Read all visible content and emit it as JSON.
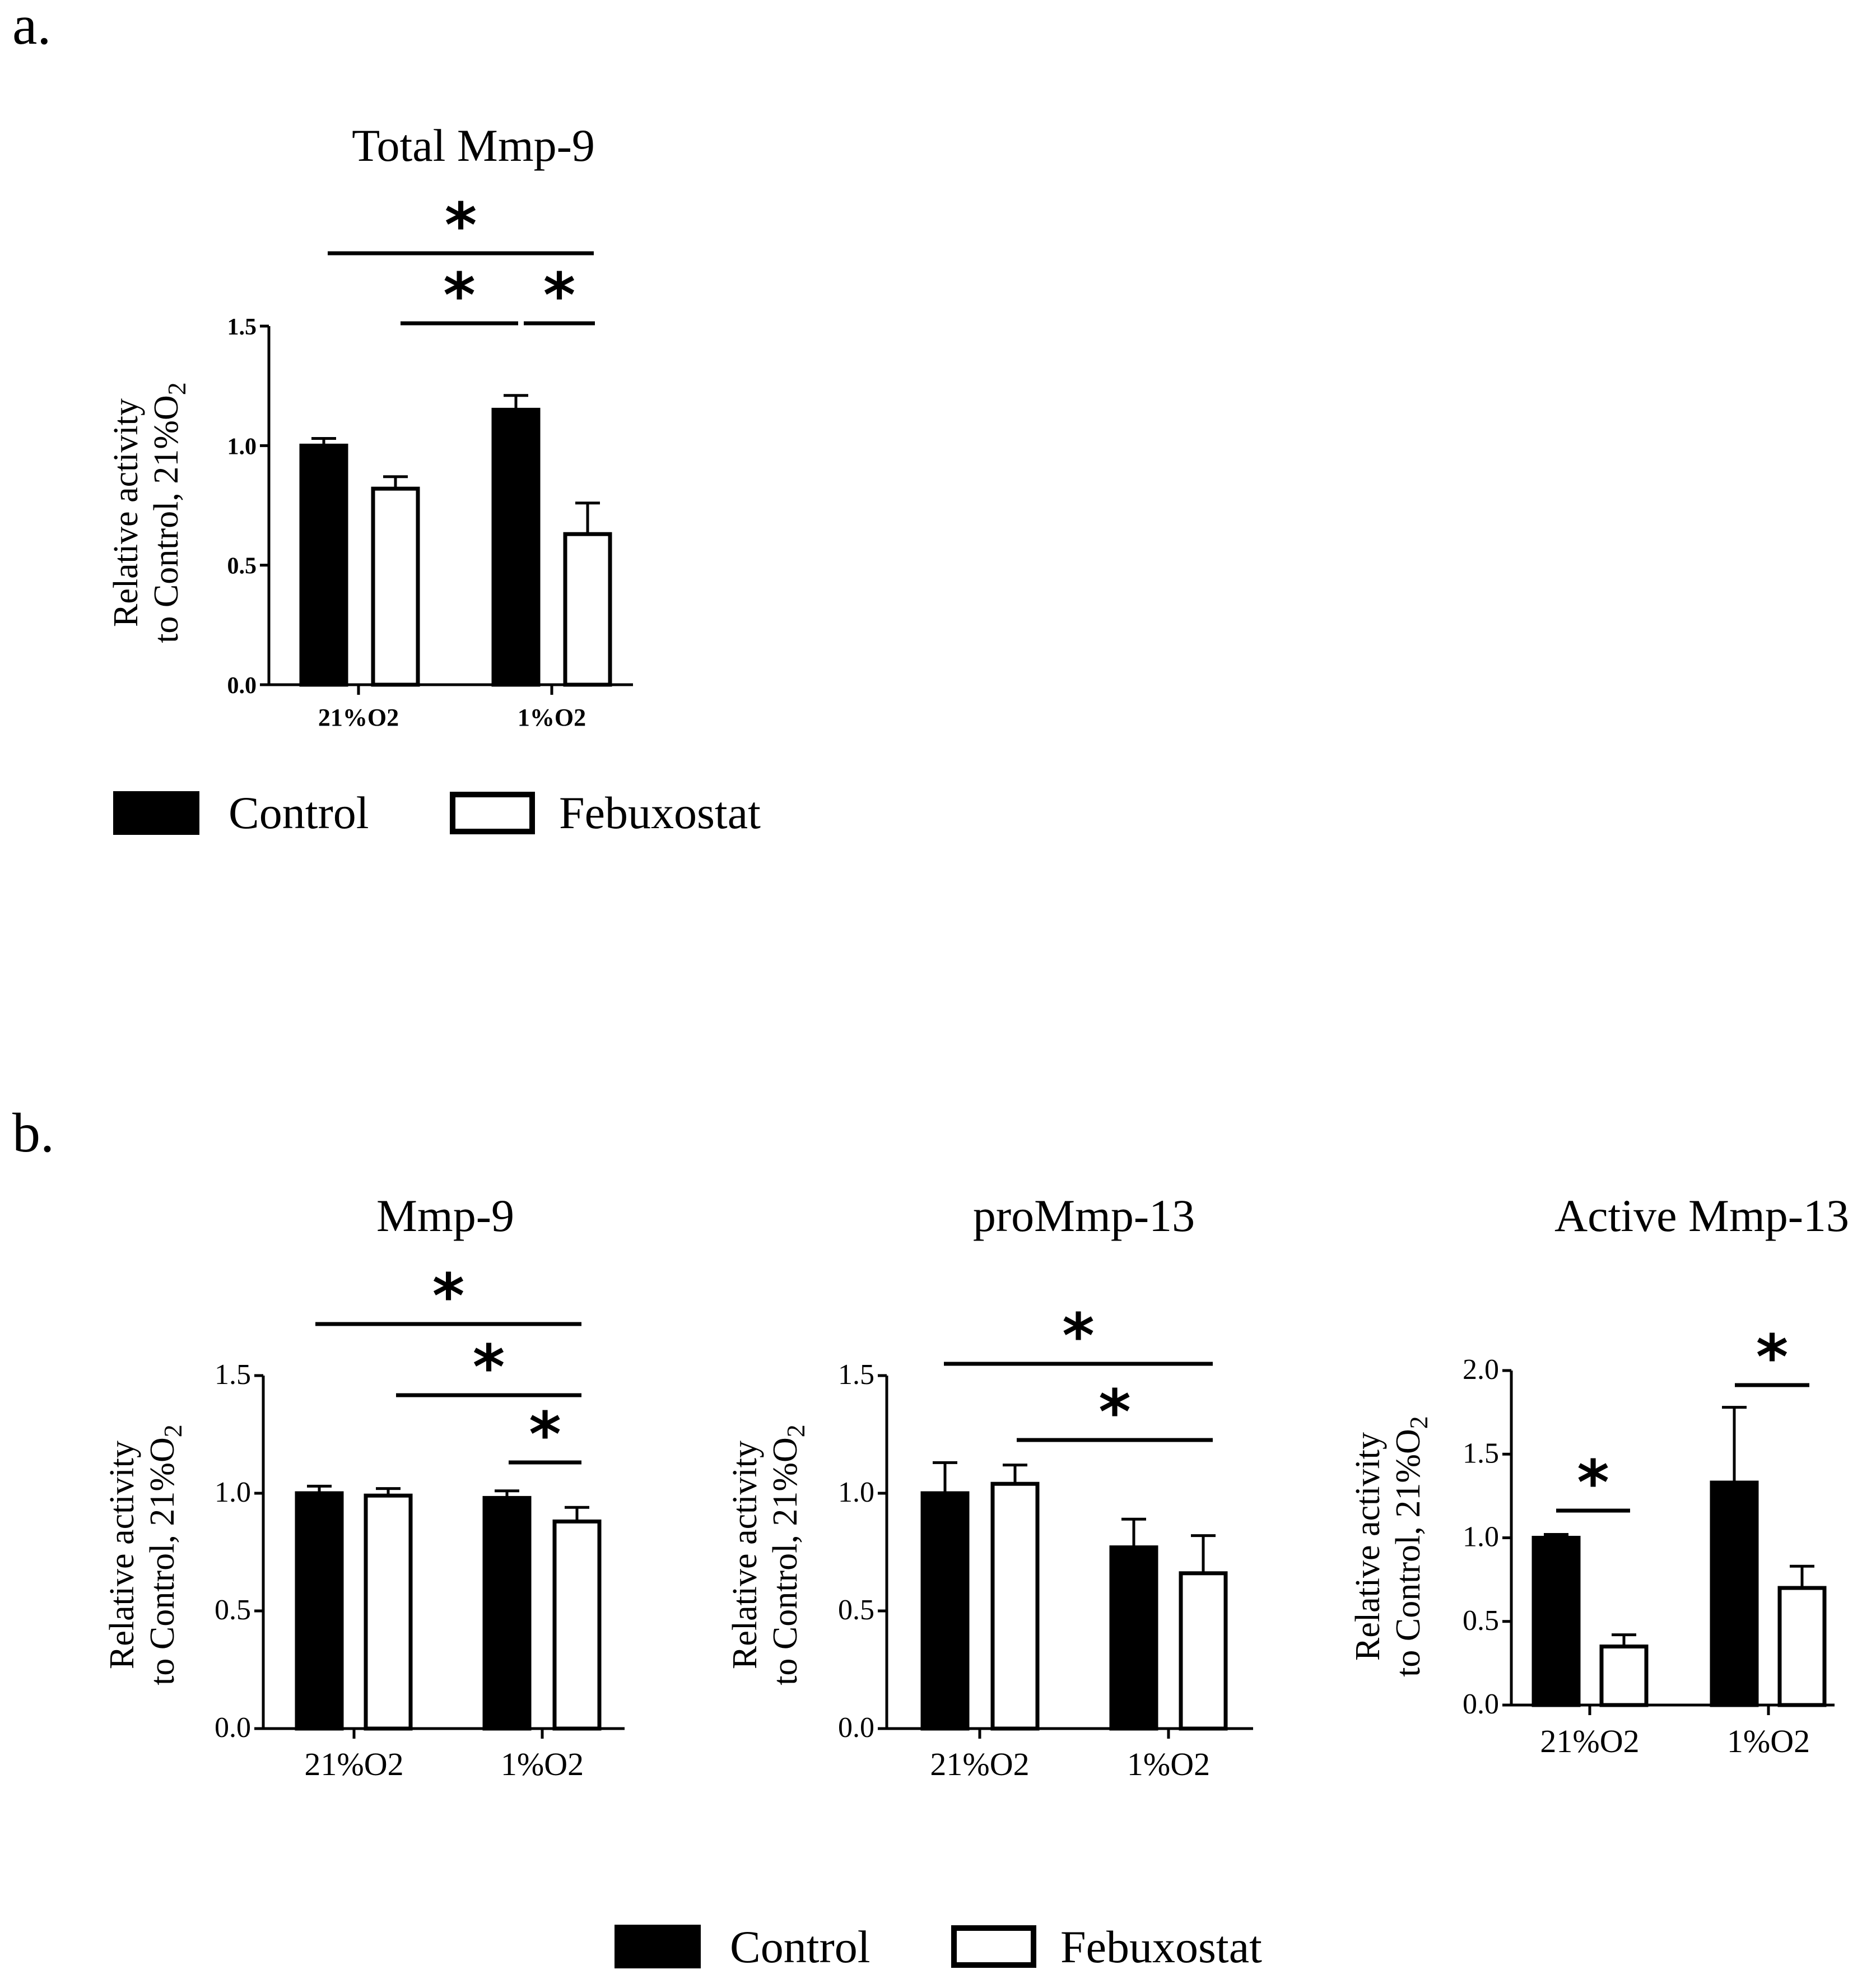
{
  "panel_labels": {
    "a": "a.",
    "b": "b."
  },
  "legend": {
    "control_label": "Control",
    "febuxostat_label": "Febuxostat"
  },
  "colors": {
    "control": "#000000",
    "febuxostat": "#ffffff",
    "stroke": "#000000"
  },
  "chart_data": [
    {
      "type": "bar",
      "panel": "a",
      "title": "Total Mmp-9",
      "ylabel": "Relative activity to Control, 21%O2",
      "ylim": [
        0,
        1.5
      ],
      "yticks": [
        "0.0",
        "0.5",
        "1.0",
        "1.5"
      ],
      "categories": [
        "21%O2",
        "1%O2"
      ],
      "series": [
        {
          "name": "Control",
          "values": [
            1.0,
            1.15
          ],
          "errors": [
            0.03,
            0.06
          ]
        },
        {
          "name": "Febuxostat",
          "values": [
            0.82,
            0.63
          ],
          "errors": [
            0.05,
            0.13
          ]
        }
      ],
      "significance": [
        {
          "from": [
            0,
            0
          ],
          "to": [
            1,
            1
          ],
          "label": "*"
        },
        {
          "from": [
            0,
            1
          ],
          "to": [
            1,
            0
          ],
          "label": "*"
        },
        {
          "from": [
            1,
            0
          ],
          "to": [
            1,
            1
          ],
          "label": "*"
        }
      ]
    },
    {
      "type": "bar",
      "panel": "b",
      "title": "Mmp-9",
      "ylabel": "Relative activity to Control, 21%O2",
      "ylim": [
        0,
        1.5
      ],
      "yticks": [
        "0.0",
        "0.5",
        "1.0",
        "1.5"
      ],
      "categories": [
        "21%O2",
        "1%O2"
      ],
      "series": [
        {
          "name": "Control",
          "values": [
            1.0,
            0.98
          ],
          "errors": [
            0.03,
            0.03
          ]
        },
        {
          "name": "Febuxostat",
          "values": [
            0.99,
            0.88
          ],
          "errors": [
            0.03,
            0.06
          ]
        }
      ],
      "significance": [
        {
          "from": [
            0,
            0
          ],
          "to": [
            1,
            1
          ],
          "label": "*"
        },
        {
          "from": [
            0,
            1
          ],
          "to": [
            1,
            1
          ],
          "label": "*"
        },
        {
          "from": [
            1,
            0
          ],
          "to": [
            1,
            1
          ],
          "label": "*"
        }
      ]
    },
    {
      "type": "bar",
      "panel": "b",
      "title": "proMmp-13",
      "ylabel": "Relative activity to Control, 21%O2",
      "ylim": [
        0,
        1.5
      ],
      "yticks": [
        "0.0",
        "0.5",
        "1.0",
        "1.5"
      ],
      "categories": [
        "21%O2",
        "1%O2"
      ],
      "series": [
        {
          "name": "Control",
          "values": [
            1.0,
            0.77
          ],
          "errors": [
            0.13,
            0.12
          ]
        },
        {
          "name": "Febuxostat",
          "values": [
            1.04,
            0.66
          ],
          "errors": [
            0.08,
            0.16
          ]
        }
      ],
      "significance": [
        {
          "from": [
            0,
            0
          ],
          "to": [
            1,
            1
          ],
          "label": "*"
        },
        {
          "from": [
            0,
            1
          ],
          "to": [
            1,
            1
          ],
          "label": "*"
        }
      ]
    },
    {
      "type": "bar",
      "panel": "b",
      "title": "Active Mmp-13",
      "ylabel": "Relative activity to Control, 21%O2",
      "ylim": [
        0,
        2.0
      ],
      "yticks": [
        "0.0",
        "0.5",
        "1.0",
        "1.5",
        "2.0"
      ],
      "categories": [
        "21%O2",
        "1%O2"
      ],
      "series": [
        {
          "name": "Control",
          "values": [
            1.0,
            1.33
          ],
          "errors": [
            0.02,
            0.45
          ]
        },
        {
          "name": "Febuxostat",
          "values": [
            0.35,
            0.7
          ],
          "errors": [
            0.07,
            0.13
          ]
        }
      ],
      "significance": [
        {
          "from": [
            0,
            0
          ],
          "to": [
            0,
            1
          ],
          "label": "*"
        },
        {
          "from": [
            1,
            0
          ],
          "to": [
            1,
            1
          ],
          "label": "*"
        }
      ]
    }
  ]
}
